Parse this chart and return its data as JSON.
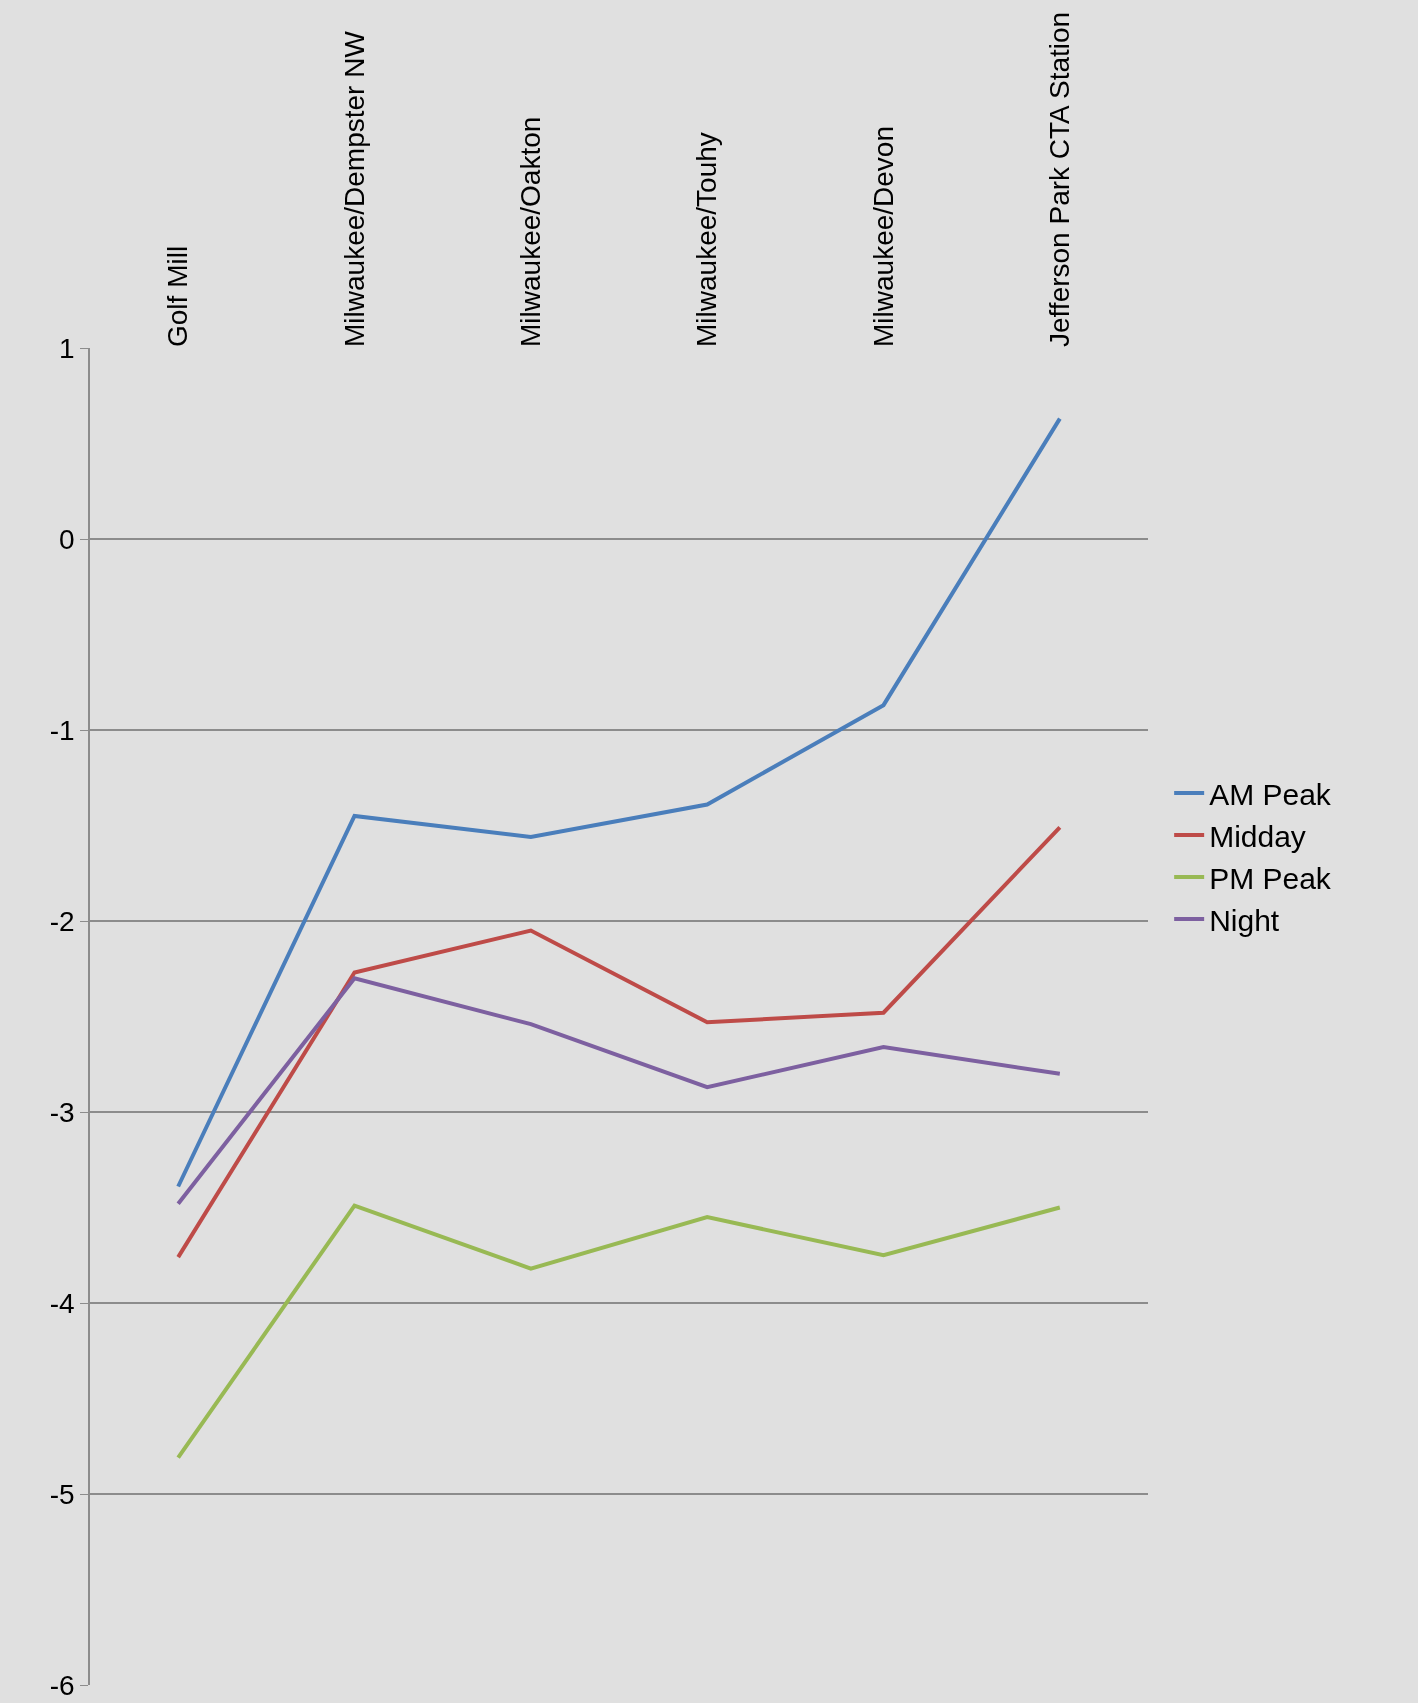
{
  "chart_data": {
    "type": "line",
    "categories": [
      "Golf Mill",
      "Milwaukee/Dempster NW",
      "Milwaukee/Oakton",
      "Milwaukee/Touhy",
      "Milwaukee/Devon",
      "Jefferson Park CTA Station"
    ],
    "series": [
      {
        "name": "AM Peak",
        "color": "#4a7ebb",
        "values": [
          -3.39,
          -1.45,
          -1.56,
          -1.39,
          -0.87,
          0.63
        ]
      },
      {
        "name": "Midday",
        "color": "#be4b48",
        "values": [
          -3.76,
          -2.27,
          -2.05,
          -2.53,
          -2.48,
          -1.51
        ]
      },
      {
        "name": "PM Peak",
        "color": "#98b954",
        "values": [
          -4.81,
          -3.49,
          -3.82,
          -3.55,
          -3.75,
          -3.5
        ]
      },
      {
        "name": "Night",
        "color": "#7d60a0",
        "values": [
          -3.48,
          -2.3,
          -2.54,
          -2.87,
          -2.66,
          -2.8
        ]
      }
    ],
    "ylim": [
      -6,
      1
    ],
    "yticks": [
      -6,
      -5,
      -4,
      -3,
      -2,
      -1,
      0,
      1
    ],
    "grid": "y",
    "legend": "right",
    "marker": "none",
    "line_style": "solid"
  }
}
